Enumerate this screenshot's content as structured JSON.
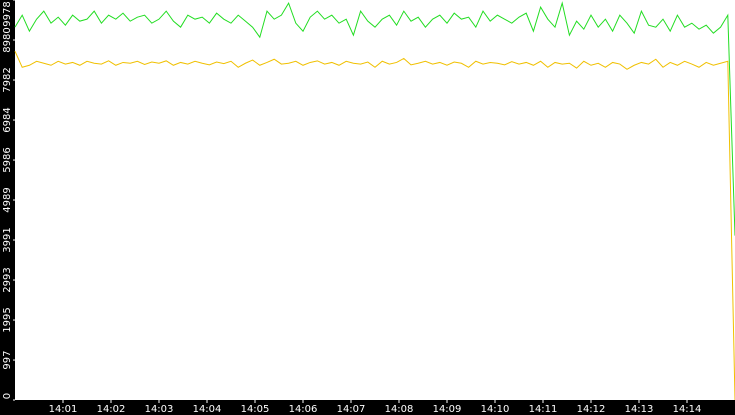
{
  "chart_data": {
    "type": "line",
    "x": [
      840,
      840.15,
      840.3,
      840.45,
      840.6,
      840.75,
      840.9,
      841.05,
      841.2,
      841.35,
      841.5,
      841.65,
      841.8,
      841.95,
      842.1,
      842.25,
      842.4,
      842.55,
      842.7,
      842.85,
      843,
      843.15,
      843.3,
      843.45,
      843.6,
      843.75,
      843.9,
      844.05,
      844.2,
      844.35,
      844.5,
      844.65,
      844.8,
      844.95,
      845.1,
      845.25,
      845.4,
      845.55,
      845.7,
      845.85,
      846,
      846.15,
      846.3,
      846.45,
      846.6,
      846.75,
      846.9,
      847.05,
      847.2,
      847.35,
      847.5,
      847.65,
      847.8,
      847.95,
      848.1,
      848.25,
      848.4,
      848.55,
      848.7,
      848.85,
      849,
      849.15,
      849.3,
      849.45,
      849.6,
      849.75,
      849.9,
      850.05,
      850.2,
      850.35,
      850.5,
      850.65,
      850.8,
      850.95,
      851.1,
      851.25,
      851.4,
      851.55,
      851.7,
      851.85,
      852,
      852.15,
      852.3,
      852.45,
      852.6,
      852.75,
      852.9,
      853.05,
      853.2,
      853.35,
      853.5,
      853.65,
      853.8,
      853.95,
      854.1,
      854.25,
      854.4,
      854.55,
      854.7,
      854.85,
      855
    ],
    "series": [
      {
        "color": "#f0c000",
        "values": [
          8700,
          8300,
          8350,
          8450,
          8400,
          8350,
          8450,
          8380,
          8420,
          8350,
          8450,
          8400,
          8380,
          8460,
          8350,
          8420,
          8400,
          8450,
          8370,
          8430,
          8400,
          8460,
          8350,
          8420,
          8380,
          8450,
          8400,
          8360,
          8430,
          8390,
          8450,
          8300,
          8400,
          8480,
          8350,
          8420,
          8500,
          8380,
          8400,
          8450,
          8350,
          8420,
          8460,
          8380,
          8420,
          8350,
          8450,
          8400,
          8380,
          8430,
          8300,
          8450,
          8380,
          8420,
          8520,
          8360,
          8400,
          8450,
          8380,
          8420,
          8350,
          8430,
          8400,
          8300,
          8450,
          8380,
          8420,
          8400,
          8360,
          8440,
          8380,
          8420,
          8350,
          8450,
          8300,
          8420,
          8380,
          8400,
          8280,
          8450,
          8350,
          8400,
          8300,
          8420,
          8380,
          8250,
          8350,
          8420,
          8380,
          8500,
          8300,
          8420,
          8350,
          8450,
          8380,
          8300,
          8420,
          8350,
          8400,
          8450,
          0
        ]
      },
      {
        "color": "#22dd22",
        "values": [
          9300,
          9600,
          9200,
          9500,
          9700,
          9400,
          9550,
          9350,
          9600,
          9450,
          9500,
          9700,
          9400,
          9600,
          9500,
          9650,
          9450,
          9550,
          9600,
          9400,
          9500,
          9700,
          9450,
          9300,
          9600,
          9500,
          9550,
          9400,
          9650,
          9500,
          9400,
          9600,
          9450,
          9300,
          9050,
          9700,
          9500,
          9600,
          9900,
          9400,
          9200,
          9550,
          9700,
          9500,
          9600,
          9400,
          9500,
          9100,
          9700,
          9450,
          9300,
          9500,
          9600,
          9350,
          9700,
          9450,
          9550,
          9300,
          9500,
          9600,
          9400,
          9650,
          9500,
          9550,
          9300,
          9700,
          9450,
          9600,
          9500,
          9400,
          9550,
          9650,
          9200,
          9800,
          9500,
          9300,
          9900,
          9100,
          9450,
          9250,
          9600,
          9300,
          9500,
          9200,
          9600,
          9400,
          9150,
          9700,
          9350,
          9300,
          9500,
          9200,
          9600,
          9300,
          9400,
          9250,
          9350,
          9150,
          9300,
          9600,
          4100
        ]
      }
    ],
    "xlim": [
      840,
      855
    ],
    "xticks": [
      {
        "value": 841,
        "label": "14:01"
      },
      {
        "value": 842,
        "label": "14:02"
      },
      {
        "value": 843,
        "label": "14:03"
      },
      {
        "value": 844,
        "label": "14:04"
      },
      {
        "value": 845,
        "label": "14:05"
      },
      {
        "value": 846,
        "label": "14:06"
      },
      {
        "value": 847,
        "label": "14:07"
      },
      {
        "value": 848,
        "label": "14:08"
      },
      {
        "value": 849,
        "label": "14:09"
      },
      {
        "value": 850,
        "label": "14:10"
      },
      {
        "value": 851,
        "label": "14:11"
      },
      {
        "value": 852,
        "label": "14:12"
      },
      {
        "value": 853,
        "label": "14:13"
      },
      {
        "value": 854,
        "label": "14:14"
      }
    ],
    "ylim": [
      0,
      9978
    ],
    "yticks": [
      0,
      997,
      1995,
      2993,
      3991,
      4989,
      5986,
      6984,
      7982,
      8980,
      9978
    ]
  }
}
